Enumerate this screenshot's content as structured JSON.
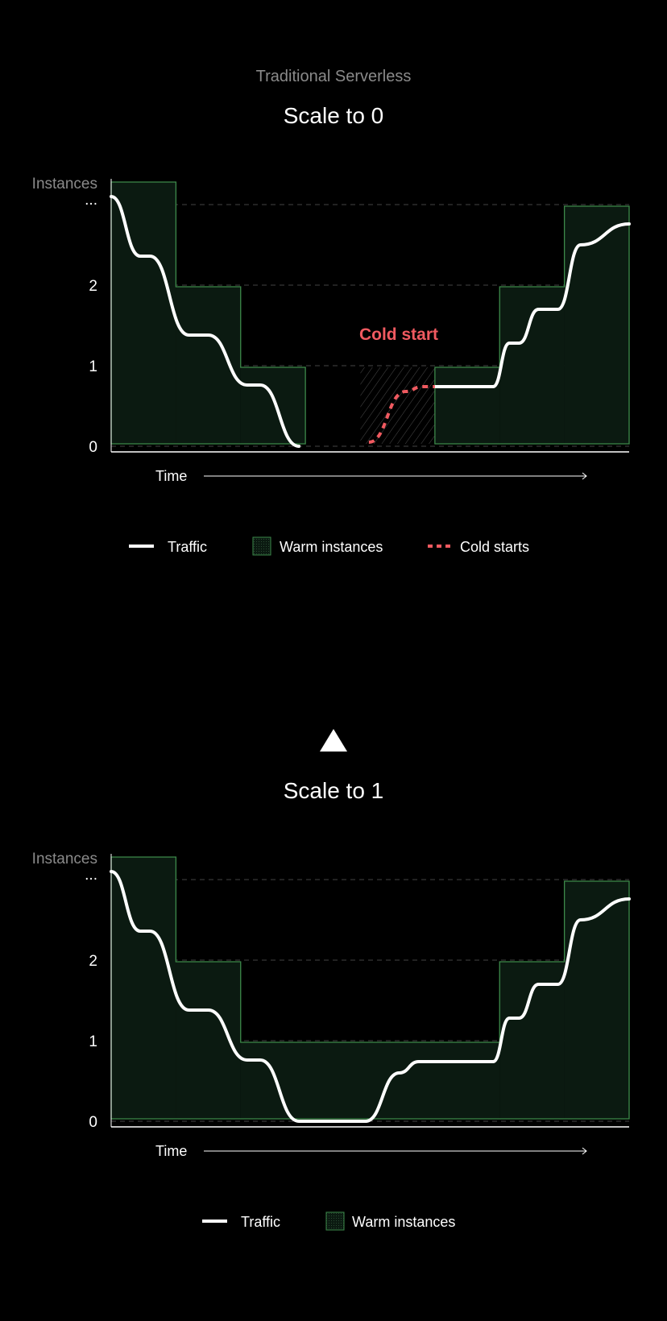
{
  "header": {
    "subtitle": "Traditional Serverless",
    "divider_icon": "triangle-up-icon"
  },
  "colors": {
    "background": "#000000",
    "warm_fill": "#0b1a11",
    "warm_stroke": "#3d8a4a",
    "traffic": "#ffffff",
    "cold": "#f05a60",
    "grid": "#444444",
    "hatch": "#4a4a4a"
  },
  "chart_data": [
    {
      "type": "line",
      "title": "Scale to 0",
      "ylabel": "Instances",
      "xlabel": "Time",
      "yticks": [
        {
          "value": 0,
          "label": "0"
        },
        {
          "value": 1,
          "label": "1"
        },
        {
          "value": 2,
          "label": "2"
        },
        {
          "value": 3,
          "label": "..."
        }
      ],
      "ylim": [
        0,
        3.3
      ],
      "xlim": [
        0,
        8
      ],
      "grid": true,
      "warm_instances": [
        {
          "start": 0,
          "end": 1,
          "level": 3.3
        },
        {
          "start": 1,
          "end": 2,
          "level": 2
        },
        {
          "start": 2,
          "end": 3,
          "level": 1
        },
        {
          "start": 5,
          "end": 6,
          "level": 1
        },
        {
          "start": 6,
          "end": 7,
          "level": 2
        },
        {
          "start": 7,
          "end": 8,
          "level": 3
        }
      ],
      "cold_start_region": {
        "start": 3.85,
        "end": 5,
        "level": 1
      },
      "traffic": [
        [
          0,
          3.1
        ],
        [
          0.45,
          2.36
        ],
        [
          0.6,
          2.36
        ],
        [
          1.2,
          1.38
        ],
        [
          1.5,
          1.38
        ],
        [
          2.1,
          0.76
        ],
        [
          2.3,
          0.76
        ],
        [
          2.9,
          0
        ]
      ],
      "traffic_after": [
        [
          5,
          0.74
        ],
        [
          5.9,
          0.74
        ],
        [
          6.15,
          1.28
        ],
        [
          6.3,
          1.28
        ],
        [
          6.6,
          1.7
        ],
        [
          6.9,
          1.7
        ],
        [
          7.25,
          2.5
        ],
        [
          8,
          2.76
        ]
      ],
      "cold_starts": [
        [
          3.98,
          0.05
        ],
        [
          4.55,
          0.68
        ],
        [
          4.8,
          0.74
        ],
        [
          5,
          0.74
        ]
      ],
      "annotation": "Cold start",
      "legend": [
        {
          "name": "Traffic",
          "style": "line"
        },
        {
          "name": "Warm instances",
          "style": "area"
        },
        {
          "name": "Cold starts",
          "style": "dashed"
        }
      ]
    },
    {
      "type": "line",
      "title": "Scale to 1",
      "ylabel": "Instances",
      "xlabel": "Time",
      "yticks": [
        {
          "value": 0,
          "label": "0"
        },
        {
          "value": 1,
          "label": "1"
        },
        {
          "value": 2,
          "label": "2"
        },
        {
          "value": 3,
          "label": "..."
        }
      ],
      "ylim": [
        0,
        3.3
      ],
      "xlim": [
        0,
        8
      ],
      "grid": true,
      "warm_instances": [
        {
          "start": 0,
          "end": 1,
          "level": 3.3
        },
        {
          "start": 1,
          "end": 2,
          "level": 2
        },
        {
          "start": 2,
          "end": 6,
          "level": 1
        },
        {
          "start": 6,
          "end": 7,
          "level": 2
        },
        {
          "start": 7,
          "end": 8,
          "level": 3
        }
      ],
      "traffic": [
        [
          0,
          3.1
        ],
        [
          0.45,
          2.36
        ],
        [
          0.6,
          2.36
        ],
        [
          1.2,
          1.38
        ],
        [
          1.5,
          1.38
        ],
        [
          2.1,
          0.76
        ],
        [
          2.3,
          0.76
        ],
        [
          2.9,
          0
        ],
        [
          3.93,
          0
        ]
      ],
      "traffic_after": [
        [
          3.93,
          0
        ],
        [
          4.45,
          0.6
        ],
        [
          4.75,
          0.74
        ],
        [
          5.9,
          0.74
        ],
        [
          6.15,
          1.28
        ],
        [
          6.3,
          1.28
        ],
        [
          6.6,
          1.7
        ],
        [
          6.9,
          1.7
        ],
        [
          7.25,
          2.5
        ],
        [
          8,
          2.76
        ]
      ],
      "legend": [
        {
          "name": "Traffic",
          "style": "line"
        },
        {
          "name": "Warm instances",
          "style": "area"
        }
      ]
    }
  ]
}
